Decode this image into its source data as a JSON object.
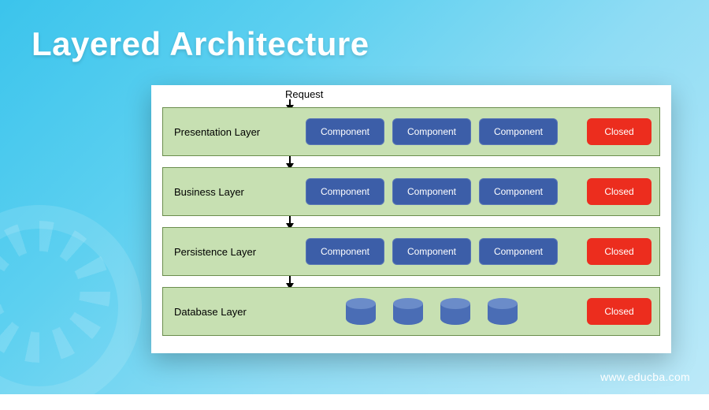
{
  "title": "Layered Architecture",
  "requestLabel": "Request",
  "footerUrl": "www.educba.com",
  "diagram": {
    "type": "layered-flowchart",
    "background_color": "#ffffff",
    "panel_shadow": "0 10px 30px rgba(0,0,0,0.25)",
    "layer_bg": "#c7e0b2",
    "layer_border": "#6b8e4e",
    "component_bg": "#3c5ea8",
    "component_text": "#ffffff",
    "closed_bg": "#ec2d1e",
    "closed_text": "#ffffff",
    "cylinder_body": "#4a6db5",
    "cylinder_top": "#6b8cc9",
    "arrow_color": "#000000",
    "label_fontsize": 13,
    "component_fontsize": 12,
    "component_radius": 6,
    "layers": [
      {
        "name": "Presentation Layer",
        "kind": "components",
        "components": [
          "Component",
          "Component",
          "Component"
        ],
        "status": "Closed"
      },
      {
        "name": "Business Layer",
        "kind": "components",
        "components": [
          "Component",
          "Component",
          "Component"
        ],
        "status": "Closed"
      },
      {
        "name": "Persistence Layer",
        "kind": "components",
        "components": [
          "Component",
          "Component",
          "Component"
        ],
        "status": "Closed"
      },
      {
        "name": "Database Layer",
        "kind": "cylinders",
        "cylinder_count": 4,
        "status": "Closed"
      }
    ]
  },
  "pageStyle": {
    "bg_gradient_stops": [
      "#3bc4ec",
      "#5dd0f0",
      "#8fdcf4",
      "#bce9f8"
    ],
    "title_color": "#ffffff",
    "title_fontsize": 42
  }
}
